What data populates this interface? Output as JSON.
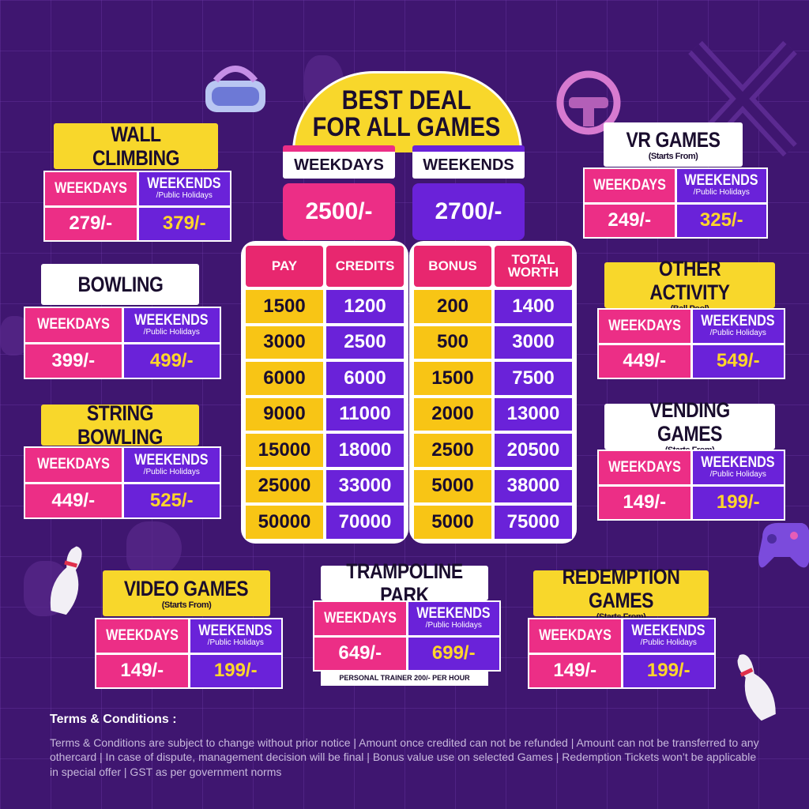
{
  "colors": {
    "background": "#3f1670",
    "yellow": "#f8d72b",
    "pink": "#ec2e86",
    "purple": "#6a22d9"
  },
  "deal": {
    "title_line1": "BEST DEAL",
    "title_line2": "FOR ALL GAMES",
    "weekdays_label": "WEEKDAYS",
    "weekends_label": "WEEKENDS",
    "weekdays_price": "2500/-",
    "weekends_price": "2700/-"
  },
  "credits_table": {
    "headers": {
      "pay": "PAY",
      "credits": "CREDITS",
      "bonus": "BONUS",
      "total_worth": "TOTAL WORTH"
    },
    "rows": [
      {
        "pay": "1500",
        "credits": "1200",
        "bonus": "200",
        "total": "1400"
      },
      {
        "pay": "3000",
        "credits": "2500",
        "bonus": "500",
        "total": "3000"
      },
      {
        "pay": "6000",
        "credits": "6000",
        "bonus": "1500",
        "total": "7500"
      },
      {
        "pay": "9000",
        "credits": "11000",
        "bonus": "2000",
        "total": "13000"
      },
      {
        "pay": "15000",
        "credits": "18000",
        "bonus": "2500",
        "total": "20500"
      },
      {
        "pay": "25000",
        "credits": "33000",
        "bonus": "5000",
        "total": "38000"
      },
      {
        "pay": "50000",
        "credits": "70000",
        "bonus": "5000",
        "total": "75000"
      }
    ]
  },
  "labels": {
    "weekdays": "WEEKDAYS",
    "weekends": "WEEKENDS",
    "public_holidays": "/Public Holidays",
    "starts_from": "(Starts From)"
  },
  "cards": {
    "wall_climbing": {
      "title": "WALL CLIMBING",
      "weekdays": "279/-",
      "weekends": "379/-"
    },
    "bowling": {
      "title": "BOWLING",
      "weekdays": "399/-",
      "weekends": "499/-"
    },
    "string_bowling": {
      "title": "STRING BOWLING",
      "weekdays": "449/-",
      "weekends": "525/-"
    },
    "video_games": {
      "title": "VIDEO GAMES",
      "subtitle": "(Starts From)",
      "weekdays": "149/-",
      "weekends": "199/-"
    },
    "trampoline_park": {
      "title": "TRAMPOLINE PARK",
      "weekdays": "649/-",
      "weekends": "699/-",
      "note": "PERSONAL TRAINER 200/- PER HOUR"
    },
    "redemption_games": {
      "title": "REDEMPTION GAMES",
      "subtitle": "(Starts From)",
      "weekdays": "149/-",
      "weekends": "199/-"
    },
    "vr_games": {
      "title": "VR GAMES",
      "subtitle": "(Starts From)",
      "weekdays": "249/-",
      "weekends": "325/-"
    },
    "other_activity": {
      "title": "OTHER ACTIVITY",
      "subtitle": "(Ball Pool)",
      "weekdays": "449/-",
      "weekends": "549/-"
    },
    "vending_games": {
      "title": "VENDING GAMES",
      "subtitle": "(Starts From)",
      "weekdays": "149/-",
      "weekends": "199/-"
    }
  },
  "terms": {
    "heading": "Terms & Conditions :",
    "text": "Terms & Conditions are subject to change without prior notice | Amount once credited can not be refunded | Amount can not be transferred to any othercard | In case of dispute, management decision will be final | Bonus value use on selected Games | Redemption Tickets won’t be applicable in special offer  |  GST as per government norms"
  },
  "icons": [
    "vr-headset-icon",
    "steering-wheel-icon",
    "gamepad-icon",
    "bowling-pin-icon"
  ]
}
